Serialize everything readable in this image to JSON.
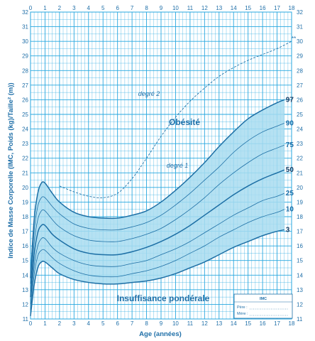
{
  "chart_data": {
    "type": "line",
    "xlabel": "Age (années)",
    "ylabel": "Indice de Masse Corporelle (IMC, Poids (kg)/Taille² (m))",
    "xlim": [
      0,
      18
    ],
    "ylim": [
      11,
      32
    ],
    "x_ticks": [
      0,
      1,
      2,
      3,
      4,
      5,
      6,
      7,
      8,
      9,
      10,
      11,
      12,
      13,
      14,
      15,
      16,
      17,
      18
    ],
    "y_ticks": [
      11,
      12,
      13,
      14,
      15,
      16,
      17,
      18,
      19,
      20,
      21,
      22,
      23,
      24,
      25,
      26,
      27,
      28,
      29,
      30,
      31,
      32
    ],
    "grid": true,
    "shaded_band": {
      "lower": "3",
      "upper": "97",
      "color": "#a8dcf0"
    },
    "series": [
      {
        "name": "97",
        "style": "solid",
        "weight": "bold",
        "x": [
          0,
          0.25,
          0.5,
          0.75,
          1,
          1.5,
          2,
          3,
          4,
          5,
          6,
          7,
          8,
          9,
          10,
          11,
          12,
          13,
          14,
          15,
          16,
          17,
          17.5
        ],
        "y": [
          13.8,
          17.8,
          19.6,
          20.3,
          20.3,
          19.6,
          19.0,
          18.3,
          18.0,
          17.9,
          17.9,
          18.1,
          18.4,
          19.0,
          19.8,
          20.7,
          21.7,
          22.8,
          23.8,
          24.7,
          25.3,
          25.8,
          26.0
        ]
      },
      {
        "name": "90",
        "style": "solid",
        "weight": "thin",
        "x": [
          0,
          0.25,
          0.5,
          0.75,
          1,
          1.5,
          2,
          3,
          4,
          5,
          6,
          7,
          8,
          9,
          10,
          11,
          12,
          13,
          14,
          15,
          16,
          17,
          17.5
        ],
        "y": [
          13.4,
          17.0,
          18.7,
          19.3,
          19.3,
          18.7,
          18.2,
          17.5,
          17.2,
          17.1,
          17.1,
          17.3,
          17.6,
          18.1,
          18.8,
          19.6,
          20.5,
          21.4,
          22.4,
          23.2,
          23.8,
          24.2,
          24.4
        ]
      },
      {
        "name": "75",
        "style": "solid",
        "weight": "thin",
        "x": [
          0,
          0.25,
          0.5,
          0.75,
          1,
          1.5,
          2,
          3,
          4,
          5,
          6,
          7,
          8,
          9,
          10,
          11,
          12,
          13,
          14,
          15,
          16,
          17,
          17.5
        ],
        "y": [
          12.9,
          16.2,
          17.8,
          18.4,
          18.4,
          17.8,
          17.3,
          16.7,
          16.4,
          16.3,
          16.3,
          16.5,
          16.8,
          17.2,
          17.8,
          18.5,
          19.3,
          20.2,
          21.0,
          21.7,
          22.3,
          22.7,
          22.9
        ]
      },
      {
        "name": "50",
        "style": "solid",
        "weight": "bold",
        "x": [
          0,
          0.25,
          0.5,
          0.75,
          1,
          1.5,
          2,
          3,
          4,
          5,
          6,
          7,
          8,
          9,
          10,
          11,
          12,
          13,
          14,
          15,
          16,
          17,
          17.5
        ],
        "y": [
          12.5,
          15.4,
          16.9,
          17.4,
          17.4,
          16.8,
          16.4,
          15.8,
          15.5,
          15.4,
          15.4,
          15.6,
          15.9,
          16.3,
          16.8,
          17.4,
          18.1,
          18.8,
          19.5,
          20.1,
          20.6,
          21.0,
          21.2
        ]
      },
      {
        "name": "25",
        "style": "solid",
        "weight": "thin",
        "x": [
          0,
          0.25,
          0.5,
          0.75,
          1,
          1.5,
          2,
          3,
          4,
          5,
          6,
          7,
          8,
          9,
          10,
          11,
          12,
          13,
          14,
          15,
          16,
          17,
          17.5
        ],
        "y": [
          12.0,
          14.6,
          16.0,
          16.5,
          16.5,
          15.9,
          15.5,
          15.0,
          14.7,
          14.6,
          14.6,
          14.8,
          15.0,
          15.4,
          15.8,
          16.3,
          16.9,
          17.5,
          18.1,
          18.6,
          19.1,
          19.4,
          19.6
        ]
      },
      {
        "name": "10",
        "style": "solid",
        "weight": "thin",
        "x": [
          0,
          0.25,
          0.5,
          0.75,
          1,
          1.5,
          2,
          3,
          4,
          5,
          6,
          7,
          8,
          9,
          10,
          11,
          12,
          13,
          14,
          15,
          16,
          17,
          17.5
        ],
        "y": [
          11.6,
          14.0,
          15.3,
          15.7,
          15.7,
          15.2,
          14.8,
          14.3,
          14.0,
          13.9,
          13.9,
          14.1,
          14.3,
          14.6,
          15.0,
          15.5,
          16.0,
          16.6,
          17.1,
          17.6,
          18.0,
          18.3,
          18.5
        ]
      },
      {
        "name": "3",
        "style": "solid",
        "weight": "bold",
        "x": [
          0,
          0.25,
          0.5,
          0.75,
          1,
          1.5,
          2,
          3,
          4,
          5,
          6,
          7,
          8,
          9,
          10,
          11,
          12,
          13,
          14,
          15,
          16,
          17,
          17.5
        ],
        "y": [
          11.2,
          13.3,
          14.5,
          14.9,
          14.9,
          14.5,
          14.1,
          13.7,
          13.5,
          13.4,
          13.4,
          13.5,
          13.6,
          13.8,
          14.1,
          14.5,
          14.9,
          15.4,
          15.9,
          16.3,
          16.7,
          17.0,
          17.1
        ]
      },
      {
        "name": "degré 2",
        "style": "dashed",
        "x": [
          2,
          3,
          4,
          5,
          6,
          7,
          8,
          9,
          10,
          11,
          12,
          13,
          14,
          15,
          16,
          17,
          18
        ],
        "y": [
          20.1,
          19.7,
          19.4,
          19.3,
          19.6,
          20.6,
          22.0,
          23.5,
          24.8,
          25.9,
          26.8,
          27.6,
          28.2,
          28.7,
          29.1,
          29.5,
          30.0
        ]
      }
    ],
    "annotations": {
      "obesity": "Obésité",
      "degree2": "degré 2",
      "degree1": "degré 1",
      "underweight": "Insuffisance pondérale",
      "end_mark": "**"
    },
    "percentile_labels": [
      "97",
      "90",
      "75",
      "50",
      "25",
      "10",
      "3"
    ],
    "info_box": {
      "title": "IMC",
      "father_label": "Père :",
      "mother_label": "Mère :"
    }
  },
  "colors": {
    "background": "#ffffff",
    "grid": "#27a7df",
    "band": "#a8dcf0",
    "curve": "#1d6fa5",
    "text": "#1f6fa8",
    "label_strong": "#1a3f66"
  }
}
